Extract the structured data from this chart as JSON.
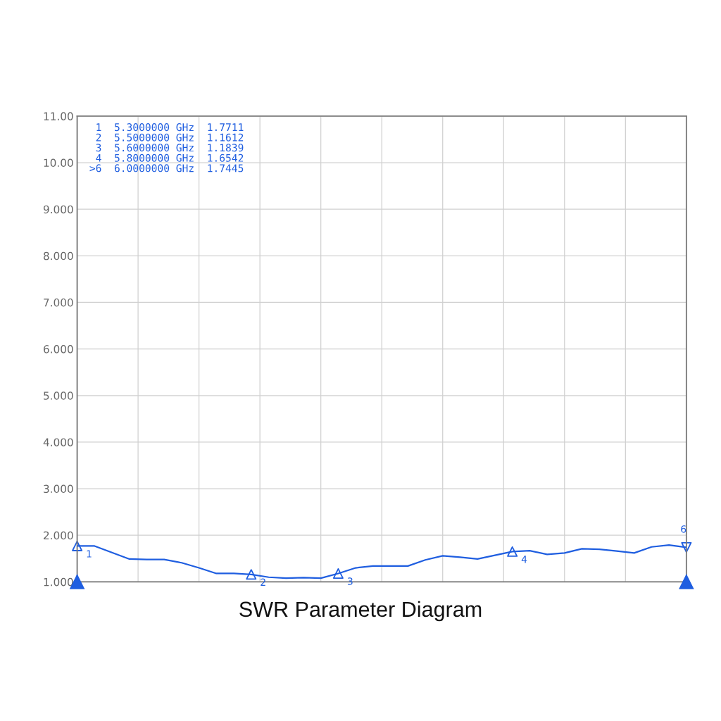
{
  "chart_data": {
    "type": "line",
    "title": "SWR Parameter Diagram",
    "categories": [
      null,
      null,
      null,
      null,
      null,
      null,
      null,
      null,
      null,
      null,
      null,
      null,
      null,
      null,
      null,
      null,
      null,
      null,
      null,
      null,
      null,
      null,
      null,
      null,
      null,
      null,
      null,
      null,
      null,
      null,
      null,
      null,
      null,
      null,
      null,
      null
    ],
    "series": [
      {
        "color": "#1f5ee0",
        "values": [
          1.77,
          1.77,
          1.63,
          1.49,
          1.48,
          1.48,
          1.41,
          1.3,
          1.18,
          1.18,
          1.16,
          1.1,
          1.08,
          1.09,
          1.08,
          1.18,
          1.3,
          1.34,
          1.34,
          1.34,
          1.47,
          1.56,
          1.53,
          1.49,
          1.57,
          1.65,
          1.67,
          1.59,
          1.62,
          1.71,
          1.7,
          1.66,
          1.62,
          1.75,
          1.79,
          1.74
        ]
      },
      {
        "type": "scatter",
        "marker": "triangle",
        "color": "#1f5ee0",
        "values": [
          1.77,
          null,
          null,
          null,
          null,
          null,
          null,
          null,
          null,
          null,
          1.16,
          null,
          null,
          null,
          null,
          1.18,
          null,
          null,
          null,
          null,
          null,
          null,
          null,
          null,
          null,
          1.65,
          null,
          null,
          null,
          null,
          null,
          null,
          null,
          null,
          null,
          1.74
        ]
      }
    ],
    "ylim": [
      1,
      11
    ],
    "yticks": [
      {
        "value": 1,
        "label": "1.000"
      },
      {
        "value": 2,
        "label": "2.000"
      },
      {
        "value": 3,
        "label": "3.000"
      },
      {
        "value": 4,
        "label": "4.000"
      },
      {
        "value": 5,
        "label": "5.000"
      },
      {
        "value": 6,
        "label": "6.000"
      },
      {
        "value": 7,
        "label": "7.000"
      },
      {
        "value": 8,
        "label": "8.000"
      },
      {
        "value": 9,
        "label": "9.000"
      },
      {
        "value": 10,
        "label": "10.00"
      },
      {
        "value": 11,
        "label": "11.00"
      }
    ],
    "grid": true,
    "line_style": "solid",
    "annotations": [
      " 1  5.3000000 GHz  1.7711",
      " 2  5.5000000 GHz  1.1612",
      " 3  5.6000000 GHz  1.1839",
      " 4  5.8000000 GHz  1.6542",
      ">6  6.0000000 GHz  1.7445",
      {
        "text": "1",
        "y": 1.77
      },
      {
        "text": "2",
        "y": 1.16
      },
      {
        "text": "3",
        "y": 1.18
      },
      {
        "text": "4",
        "y": 1.65
      },
      {
        "text": "6",
        "y": 1.74
      }
    ]
  }
}
